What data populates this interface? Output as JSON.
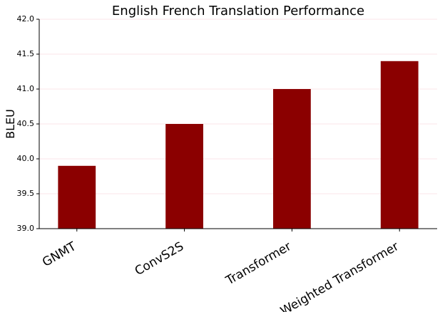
{
  "chart_data": {
    "type": "bar",
    "title": "English French Translation Performance",
    "y_label": "BLEU",
    "categories": [
      "GNMT",
      "ConvS2S",
      "Transformer",
      "Weighted Transformer"
    ],
    "values": [
      39.9,
      40.5,
      41.0,
      41.4
    ],
    "color": "#8b0000",
    "ylim": [
      39,
      42
    ],
    "yticks": [
      {
        "value": 39,
        "label": "39.0"
      },
      39.5,
      {
        "value": 40,
        "label": "40.0"
      },
      40.5,
      {
        "value": 41,
        "label": "41.0"
      },
      41.5,
      {
        "value": 42,
        "label": "42.0"
      }
    ],
    "grid": true
  }
}
